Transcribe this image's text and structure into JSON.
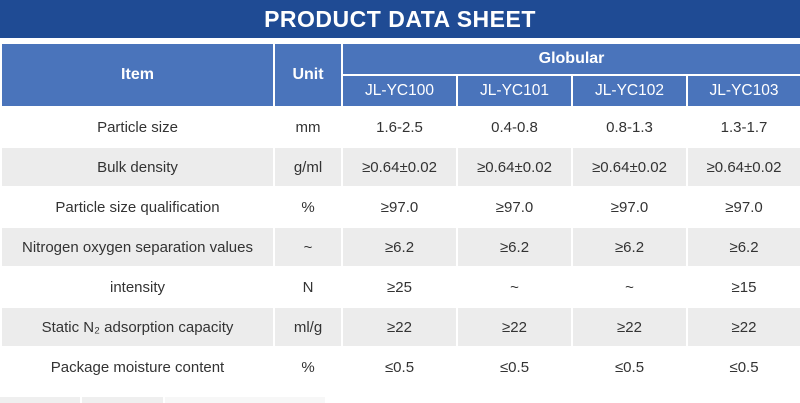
{
  "title": "PRODUCT DATA SHEET",
  "colors": {
    "title_bar": "#1F4B94",
    "header_blue": "#4A74BB",
    "row_alt": "#ECECEC",
    "body_text": "#333333"
  },
  "table": {
    "item_header": "Item",
    "unit_header": "Unit",
    "group_header": "Globular",
    "product_columns": [
      "JL-YC100",
      "JL-YC101",
      "JL-YC102",
      "JL-YC103"
    ],
    "rows": [
      {
        "item": "Particle size",
        "unit": "mm",
        "values": [
          "1.6-2.5",
          "0.4-0.8",
          "0.8-1.3",
          "1.3-1.7"
        ]
      },
      {
        "item": "Bulk density",
        "unit": "g/ml",
        "values": [
          "≥0.64±0.02",
          "≥0.64±0.02",
          "≥0.64±0.02",
          "≥0.64±0.02"
        ]
      },
      {
        "item": "Particle size qualification",
        "unit": "%",
        "values": [
          "≥97.0",
          "≥97.0",
          "≥97.0",
          "≥97.0"
        ]
      },
      {
        "item": "Nitrogen oxygen separation values",
        "unit": "~",
        "values": [
          "≥6.2",
          "≥6.2",
          "≥6.2",
          "≥6.2"
        ]
      },
      {
        "item": "intensity",
        "unit": "N",
        "values": [
          "≥25",
          "~",
          "~",
          "≥15"
        ]
      },
      {
        "item": "Static N₂ adsorption capacity",
        "unit": "ml/g",
        "values": [
          "≥22",
          "≥22",
          "≥22",
          "≥22"
        ]
      },
      {
        "item": "Package moisture content",
        "unit": "%",
        "values": [
          "≤0.5",
          "≤0.5",
          "≤0.5",
          "≤0.5"
        ]
      }
    ]
  }
}
